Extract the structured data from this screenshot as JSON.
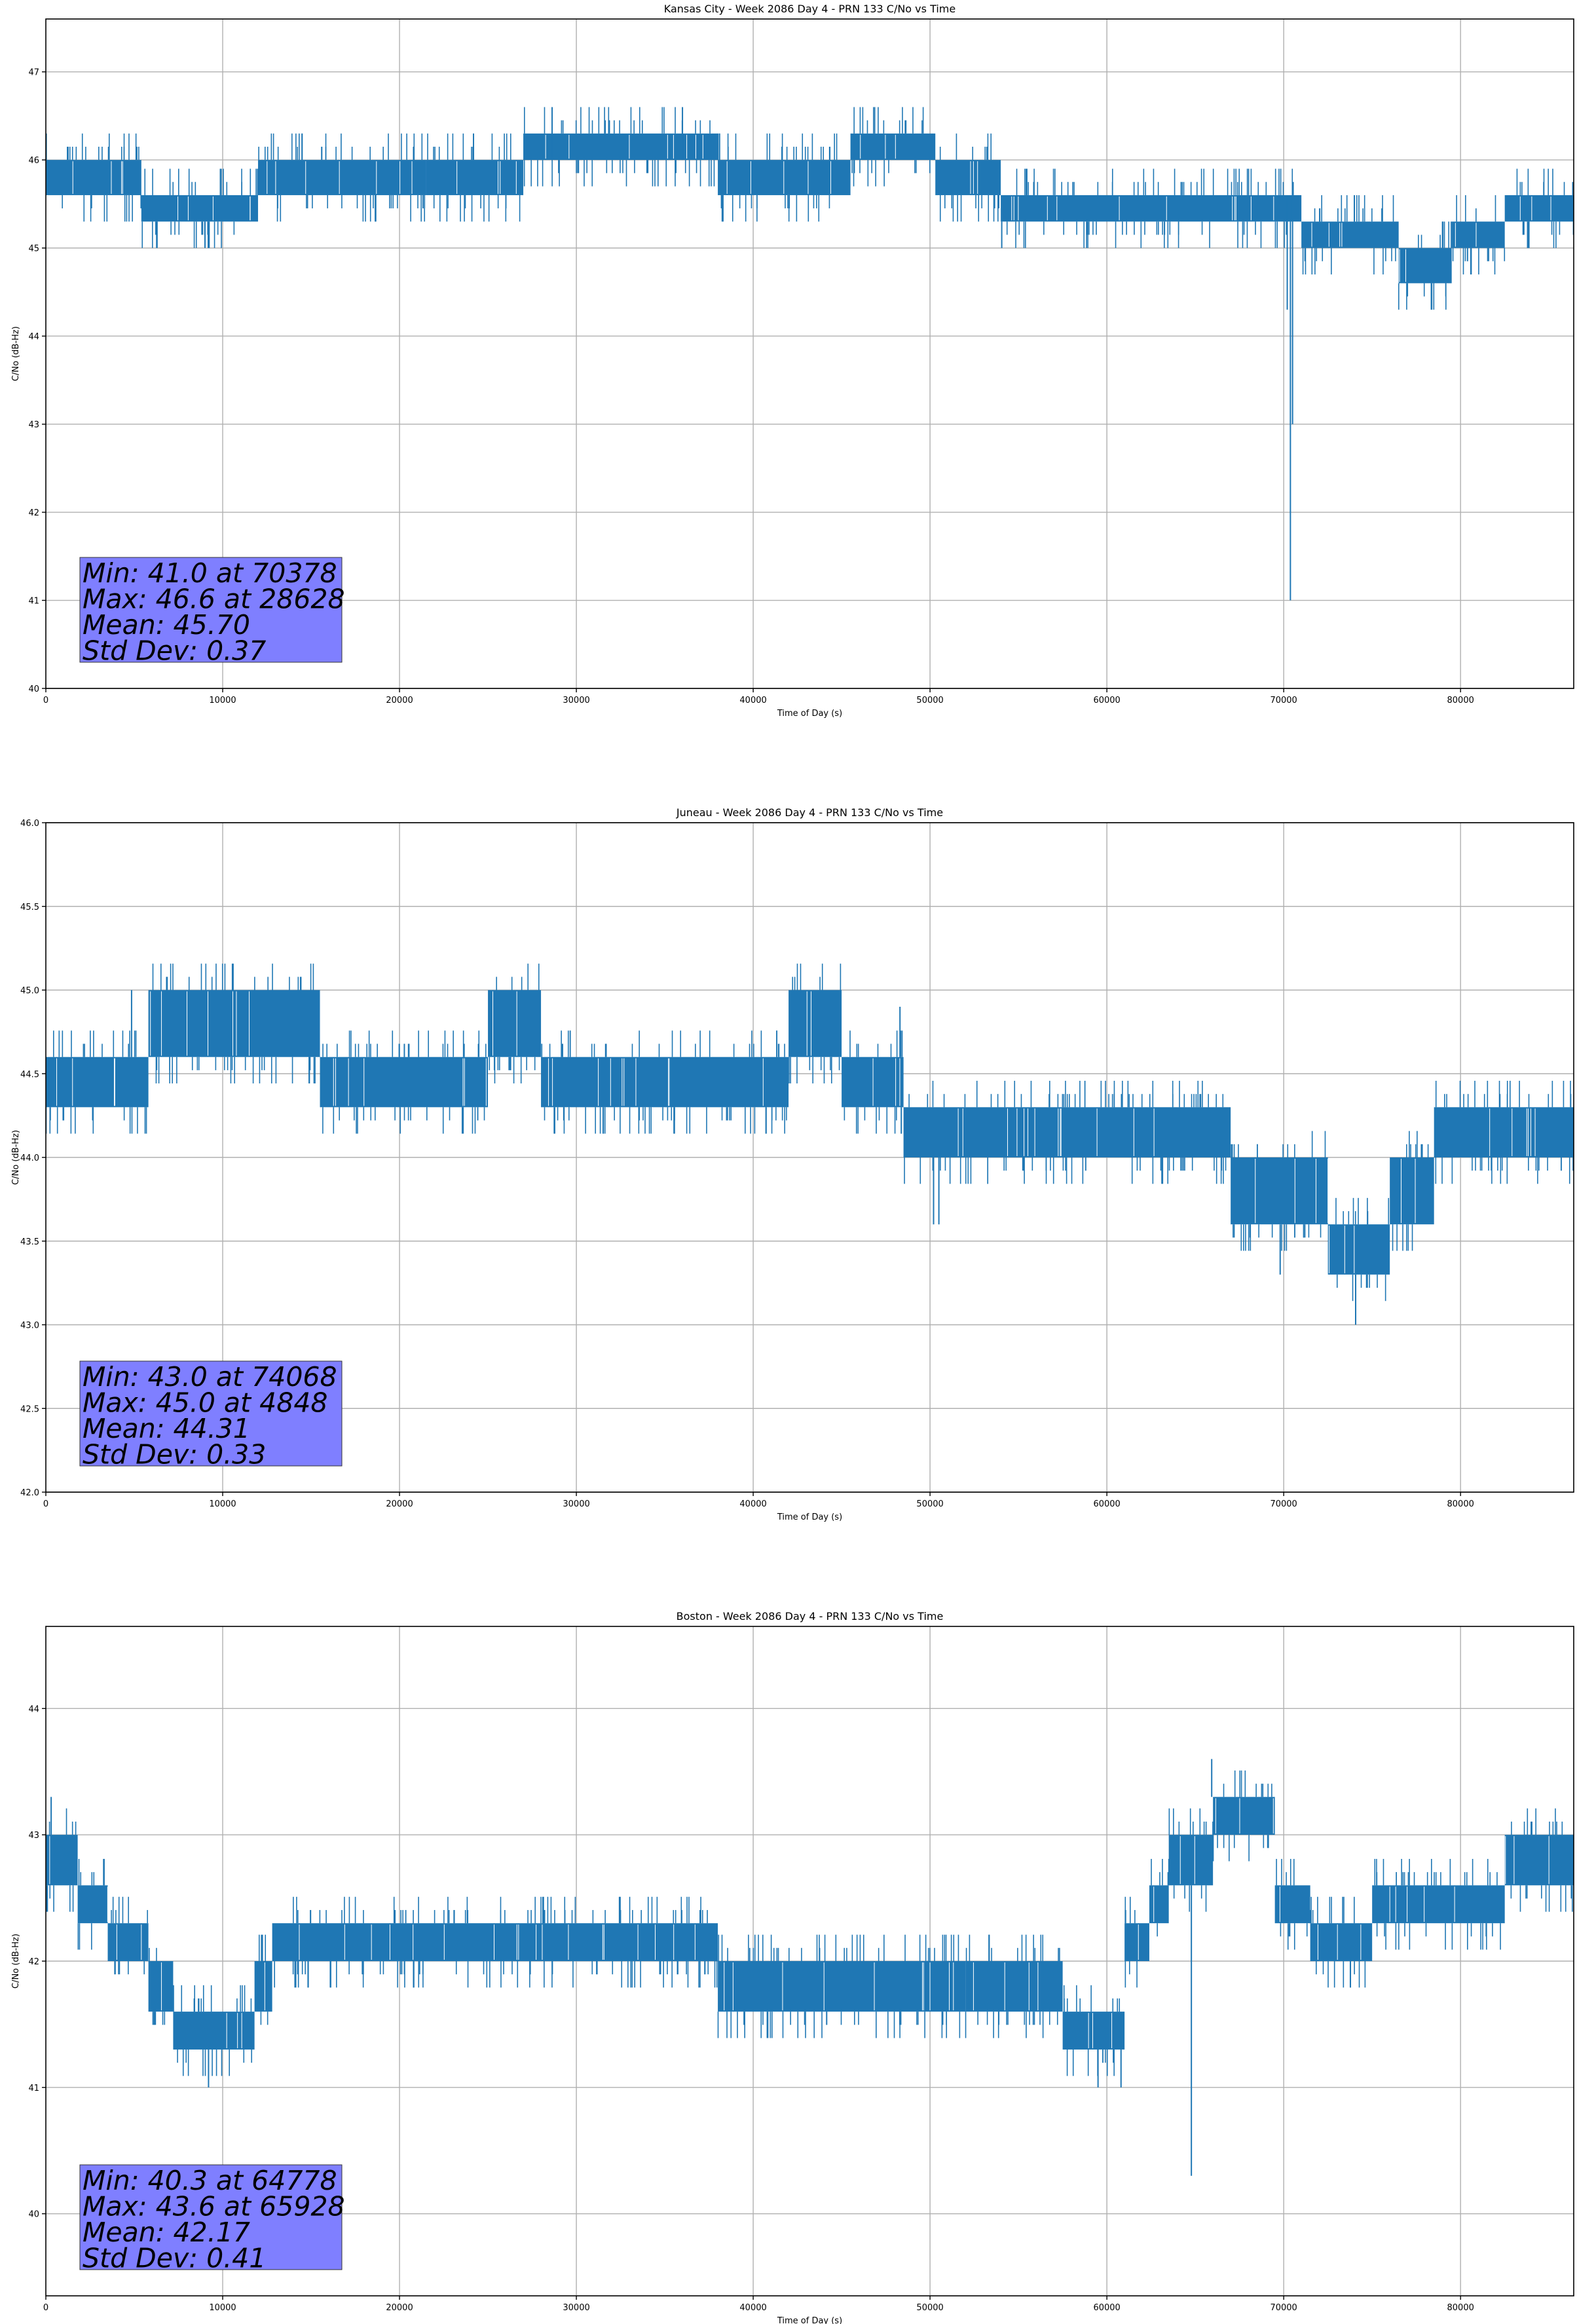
{
  "chart_data": [
    {
      "type": "line",
      "title": "Kansas City - Week 2086 Day 4 - PRN 133 C/No vs Time",
      "xlabel": "Time of Day (s)",
      "ylabel": "C/No (dB-Hz)",
      "xlim": [
        0,
        86400
      ],
      "ylim": [
        40,
        47.6
      ],
      "xticks": [
        0,
        10000,
        20000,
        30000,
        40000,
        50000,
        60000,
        70000,
        80000
      ],
      "yticks": [
        40,
        41,
        42,
        43,
        44,
        45,
        46,
        47
      ],
      "ytick_labels": [
        "40",
        "41",
        "42",
        "43",
        "44",
        "45",
        "46",
        "47"
      ],
      "grid": true,
      "color": "#1f77b4",
      "series_band": [
        {
          "x0": 0,
          "x1": 5400,
          "lo": 45.6,
          "hi": 46.0
        },
        {
          "x0": 5400,
          "x1": 12000,
          "lo": 45.3,
          "hi": 45.6
        },
        {
          "x0": 12000,
          "x1": 21500,
          "lo": 45.6,
          "hi": 46.0
        },
        {
          "x0": 21500,
          "x1": 27000,
          "lo": 45.6,
          "hi": 46.0
        },
        {
          "x0": 27000,
          "x1": 38000,
          "lo": 46.0,
          "hi": 46.3
        },
        {
          "x0": 38000,
          "x1": 45500,
          "lo": 45.6,
          "hi": 46.0
        },
        {
          "x0": 45500,
          "x1": 50300,
          "lo": 46.0,
          "hi": 46.3
        },
        {
          "x0": 50300,
          "x1": 54000,
          "lo": 45.6,
          "hi": 46.0
        },
        {
          "x0": 54000,
          "x1": 71000,
          "lo": 45.3,
          "hi": 45.6
        },
        {
          "x0": 71000,
          "x1": 76500,
          "lo": 45.0,
          "hi": 45.3
        },
        {
          "x0": 76500,
          "x1": 79500,
          "lo": 44.6,
          "hi": 45.0
        },
        {
          "x0": 79500,
          "x1": 82500,
          "lo": 45.0,
          "hi": 45.3
        },
        {
          "x0": 82500,
          "x1": 86400,
          "lo": 45.3,
          "hi": 45.6
        }
      ],
      "spikes": [
        {
          "x": 28628,
          "y0": 46.0,
          "y1": 46.6
        },
        {
          "x": 36000,
          "y0": 46.0,
          "y1": 46.6
        },
        {
          "x": 9000,
          "y0": 45.3,
          "y1": 45.0
        },
        {
          "x": 9200,
          "y0": 45.3,
          "y1": 45.0
        },
        {
          "x": 70378,
          "y0": 45.6,
          "y1": 41.0
        },
        {
          "x": 70200,
          "y0": 45.6,
          "y1": 44.3
        },
        {
          "x": 70500,
          "y0": 45.6,
          "y1": 43.0
        }
      ],
      "stats": [
        "Min: 41.0 at 70378",
        "Max: 46.6 at 28628",
        "Mean: 45.70",
        "Std Dev: 0.37"
      ]
    },
    {
      "type": "line",
      "title": "Juneau - Week 2086 Day 4 - PRN 133 C/No vs Time",
      "xlabel": "Time of Day (s)",
      "ylabel": "C/No (dB-Hz)",
      "xlim": [
        0,
        86400
      ],
      "ylim": [
        42,
        46
      ],
      "xticks": [
        0,
        10000,
        20000,
        30000,
        40000,
        50000,
        60000,
        70000,
        80000
      ],
      "yticks": [
        42.0,
        42.5,
        43.0,
        43.5,
        44.0,
        44.5,
        45.0,
        45.5,
        46.0
      ],
      "ytick_labels": [
        "42.0",
        "42.5",
        "43.0",
        "43.5",
        "44.0",
        "44.5",
        "45.0",
        "45.5",
        "46.0"
      ],
      "grid": true,
      "color": "#1f77b4",
      "series_band": [
        {
          "x0": 0,
          "x1": 5800,
          "lo": 44.3,
          "hi": 44.6
        },
        {
          "x0": 5800,
          "x1": 15500,
          "lo": 44.6,
          "hi": 45.0
        },
        {
          "x0": 15500,
          "x1": 25000,
          "lo": 44.3,
          "hi": 44.6
        },
        {
          "x0": 25000,
          "x1": 28000,
          "lo": 44.6,
          "hi": 45.0
        },
        {
          "x0": 28000,
          "x1": 42000,
          "lo": 44.3,
          "hi": 44.6
        },
        {
          "x0": 42000,
          "x1": 45000,
          "lo": 44.6,
          "hi": 45.0
        },
        {
          "x0": 45000,
          "x1": 48500,
          "lo": 44.3,
          "hi": 44.6
        },
        {
          "x0": 48500,
          "x1": 67000,
          "lo": 44.0,
          "hi": 44.3
        },
        {
          "x0": 67000,
          "x1": 72500,
          "lo": 43.6,
          "hi": 44.0
        },
        {
          "x0": 72500,
          "x1": 76000,
          "lo": 43.3,
          "hi": 43.6
        },
        {
          "x0": 76000,
          "x1": 78500,
          "lo": 43.6,
          "hi": 44.0
        },
        {
          "x0": 78500,
          "x1": 86400,
          "lo": 44.0,
          "hi": 44.3
        }
      ],
      "spikes": [
        {
          "x": 74068,
          "y0": 43.3,
          "y1": 43.0
        },
        {
          "x": 4848,
          "y0": 44.6,
          "y1": 45.0
        },
        {
          "x": 50200,
          "y0": 44.0,
          "y1": 43.6
        },
        {
          "x": 50500,
          "y0": 44.0,
          "y1": 43.6
        },
        {
          "x": 69800,
          "y0": 43.6,
          "y1": 43.3
        },
        {
          "x": 48300,
          "y0": 44.6,
          "y1": 44.9
        }
      ],
      "stats": [
        "Min: 43.0 at 74068",
        "Max: 45.0 at 4848",
        "Mean: 44.31",
        "Std Dev: 0.33"
      ]
    },
    {
      "type": "line",
      "title": "Boston - Week 2086 Day 4 - PRN 133 C/No vs Time",
      "xlabel": "Time of Day (s)",
      "ylabel": "C/No (dB-Hz)",
      "xlim": [
        0,
        86400
      ],
      "ylim": [
        39.35,
        44.65
      ],
      "xticks": [
        0,
        10000,
        20000,
        30000,
        40000,
        50000,
        60000,
        70000,
        80000
      ],
      "yticks": [
        40,
        41,
        42,
        43,
        44
      ],
      "ytick_labels": [
        "40",
        "41",
        "42",
        "43",
        "44"
      ],
      "grid": true,
      "color": "#1f77b4",
      "series_band": [
        {
          "x0": 0,
          "x1": 1800,
          "lo": 42.6,
          "hi": 43.0
        },
        {
          "x0": 1800,
          "x1": 3500,
          "lo": 42.3,
          "hi": 42.6
        },
        {
          "x0": 3500,
          "x1": 5800,
          "lo": 42.0,
          "hi": 42.3
        },
        {
          "x0": 5800,
          "x1": 7200,
          "lo": 41.6,
          "hi": 42.0
        },
        {
          "x0": 7200,
          "x1": 11800,
          "lo": 41.3,
          "hi": 41.6
        },
        {
          "x0": 11800,
          "x1": 12800,
          "lo": 41.6,
          "hi": 42.0
        },
        {
          "x0": 12800,
          "x1": 38000,
          "lo": 42.0,
          "hi": 42.3
        },
        {
          "x0": 38000,
          "x1": 52000,
          "lo": 41.6,
          "hi": 42.0
        },
        {
          "x0": 52000,
          "x1": 57500,
          "lo": 41.6,
          "hi": 42.0
        },
        {
          "x0": 57500,
          "x1": 61000,
          "lo": 41.3,
          "hi": 41.6
        },
        {
          "x0": 61000,
          "x1": 62400,
          "lo": 42.0,
          "hi": 42.3
        },
        {
          "x0": 62400,
          "x1": 63500,
          "lo": 42.3,
          "hi": 42.6
        },
        {
          "x0": 63500,
          "x1": 66000,
          "lo": 42.6,
          "hi": 43.0
        },
        {
          "x0": 66000,
          "x1": 69500,
          "lo": 43.0,
          "hi": 43.3
        },
        {
          "x0": 69500,
          "x1": 71500,
          "lo": 42.3,
          "hi": 42.6
        },
        {
          "x0": 71500,
          "x1": 75000,
          "lo": 42.0,
          "hi": 42.3
        },
        {
          "x0": 75000,
          "x1": 82500,
          "lo": 42.3,
          "hi": 42.6
        },
        {
          "x0": 82500,
          "x1": 86400,
          "lo": 42.6,
          "hi": 43.0
        }
      ],
      "spikes": [
        {
          "x": 64778,
          "y0": 42.6,
          "y1": 40.3
        },
        {
          "x": 65928,
          "y0": 43.3,
          "y1": 43.6
        },
        {
          "x": 9200,
          "y0": 41.3,
          "y1": 41.0
        },
        {
          "x": 59500,
          "y0": 41.3,
          "y1": 41.0
        },
        {
          "x": 60800,
          "y0": 41.3,
          "y1": 41.0
        },
        {
          "x": 300,
          "y0": 43.0,
          "y1": 43.3
        }
      ],
      "stats": [
        "Min: 40.3 at 64778",
        "Max: 43.6 at 65928",
        "Mean: 42.17",
        "Std Dev: 0.41"
      ]
    }
  ]
}
